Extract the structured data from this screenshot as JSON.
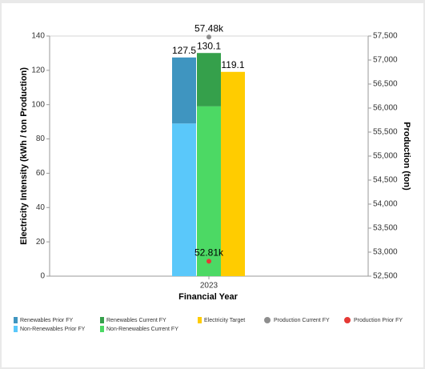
{
  "chart_data": {
    "type": "bar",
    "x_label": "Financial Year",
    "y_label": "Electricity Intensity (kWh / ton Production)",
    "y2_label": "Production (ton)",
    "categories": [
      "2023"
    ],
    "series": [
      {
        "name": "Non-Renewables Prior FY",
        "color": "#5ac8fa",
        "stack": "prior",
        "values": [
          89
        ]
      },
      {
        "name": "Renewables Prior FY",
        "color": "#3f95c0",
        "stack": "prior",
        "values": [
          38.5
        ]
      },
      {
        "name": "Non-Renewables Current FY",
        "color": "#4cd964",
        "stack": "current",
        "values": [
          99
        ]
      },
      {
        "name": "Renewables Current FY",
        "color": "#35a04b",
        "stack": "current",
        "values": [
          31.1
        ]
      },
      {
        "name": "Electricity Target",
        "color": "#ffcc00",
        "stack": "target",
        "values": [
          119.1
        ]
      },
      {
        "name": "Production Current FY",
        "color": "#8e8e8e",
        "type": "scatter",
        "axis": "y2",
        "values": [
          57480
        ],
        "value_labels": [
          "57.48k"
        ]
      },
      {
        "name": "Production Prior FY",
        "color": "#e53935",
        "type": "scatter",
        "axis": "y2",
        "values": [
          52810
        ],
        "value_labels": [
          "52.81k"
        ]
      }
    ],
    "stack_totals": [
      127.5,
      130.1
    ],
    "ylim": [
      0,
      140
    ],
    "yticks": [
      0,
      20,
      40,
      60,
      80,
      100,
      120,
      140
    ],
    "y2lim": [
      52500,
      57500
    ],
    "y2ticks": [
      {
        "value": 52500,
        "label": "52,500"
      },
      {
        "value": 53000,
        "label": "53,000"
      },
      {
        "value": 53500,
        "label": "53,500"
      },
      {
        "value": 54000,
        "label": "54,000"
      },
      {
        "value": 54500,
        "label": "54,500"
      },
      {
        "value": 55000,
        "label": "55,000"
      },
      {
        "value": 55500,
        "label": "55,500"
      },
      {
        "value": 56000,
        "label": "56,000"
      },
      {
        "value": 56500,
        "label": "56,500"
      },
      {
        "value": 57000,
        "label": "57,000"
      },
      {
        "value": 57500,
        "label": "57,500"
      }
    ],
    "grid": false
  }
}
